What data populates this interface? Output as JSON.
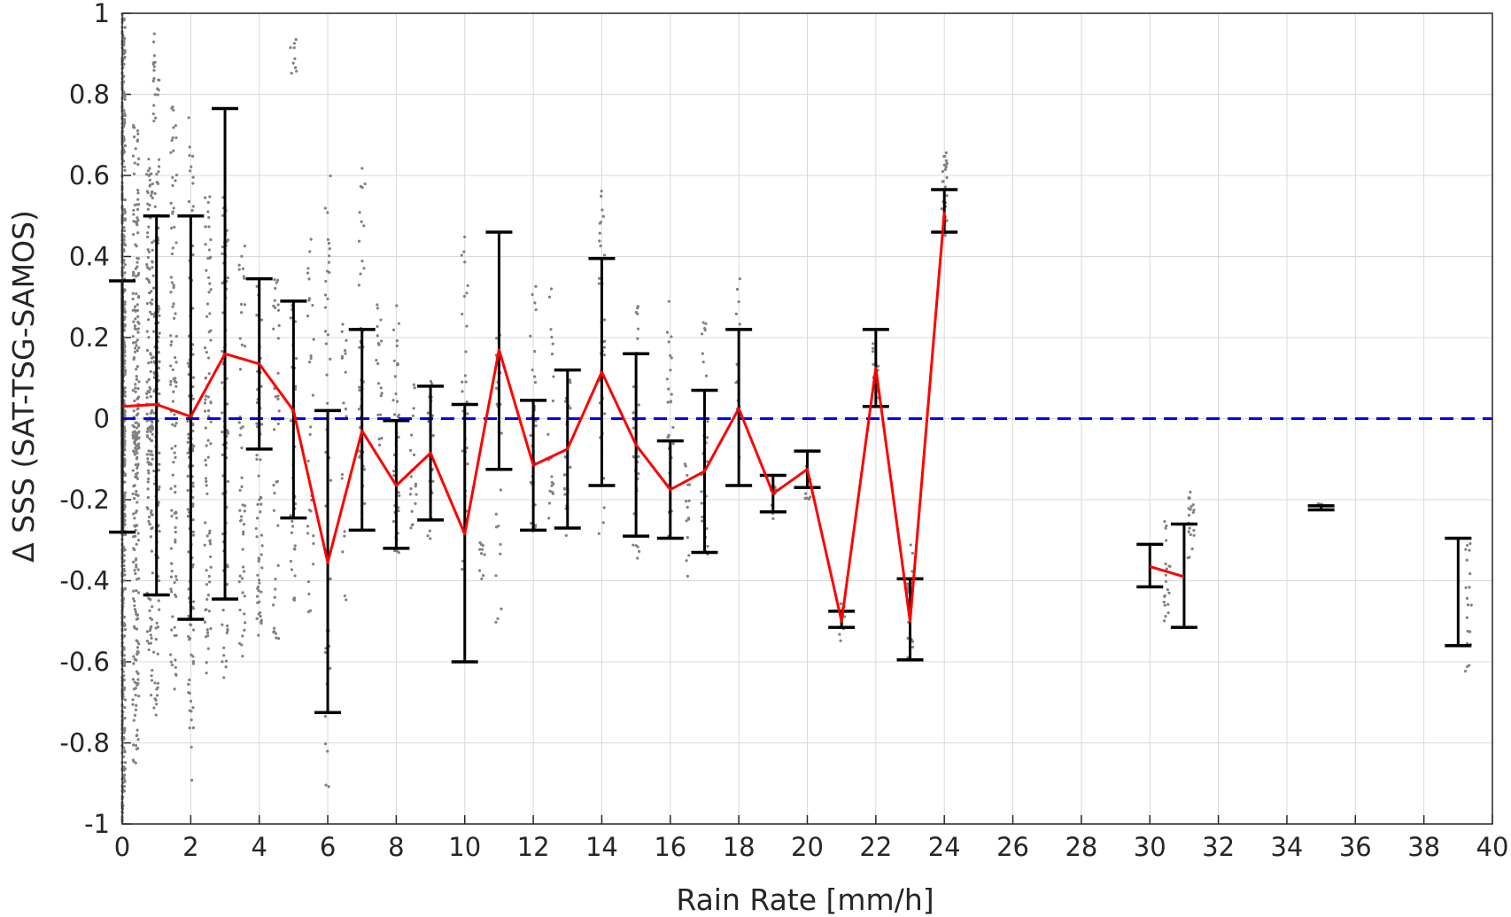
{
  "chart_data": {
    "type": "scatter",
    "xlabel": "Rain Rate [mm/h]",
    "ylabel": "Δ SSS (SAT-TSG-SAMOS)",
    "xlim": [
      0,
      40
    ],
    "ylim": [
      -1,
      1
    ],
    "grid": true,
    "x_ticks": [
      "0",
      "2",
      "4",
      "6",
      "8",
      "10",
      "12",
      "14",
      "16",
      "18",
      "20",
      "22",
      "24",
      "26",
      "28",
      "30",
      "32",
      "34",
      "36",
      "38",
      "40"
    ],
    "y_ticks": [
      "1",
      "0.8",
      "0.6",
      "0.4",
      "0.2",
      "0",
      "-0.2",
      "-0.4",
      "-0.6",
      "-0.8",
      "-1"
    ],
    "zero_line": {
      "y": 0,
      "color": "#0000ff",
      "style": "dashed"
    },
    "colors": {
      "scatter": "#808080",
      "mean_line": "#ff0000",
      "error_bars": "#000000",
      "grid": "#d9d9d9"
    },
    "series": [
      {
        "kind": "bin_mean",
        "x": [
          0,
          1,
          2,
          3,
          4,
          5,
          6,
          7,
          8,
          9,
          10,
          11,
          12,
          13,
          14,
          15,
          16,
          17,
          18,
          19,
          20,
          21,
          22,
          23,
          24
        ],
        "y": [
          0.03,
          0.035,
          0.005,
          0.16,
          0.135,
          0.02,
          -0.355,
          -0.03,
          -0.165,
          -0.085,
          -0.285,
          0.17,
          -0.115,
          -0.075,
          0.115,
          -0.065,
          -0.175,
          -0.13,
          0.025,
          -0.185,
          -0.125,
          -0.5,
          0.125,
          -0.5,
          0.51
        ]
      },
      {
        "kind": "bin_mean",
        "x": [
          30,
          31
        ],
        "y": [
          -0.365,
          -0.39
        ]
      }
    ],
    "error_bars": [
      {
        "x": 0,
        "low": -0.28,
        "high": 0.34
      },
      {
        "x": 1,
        "low": -0.435,
        "high": 0.5
      },
      {
        "x": 2,
        "low": -0.495,
        "high": 0.5
      },
      {
        "x": 3,
        "low": -0.445,
        "high": 0.765
      },
      {
        "x": 4,
        "low": -0.075,
        "high": 0.345
      },
      {
        "x": 5,
        "low": -0.245,
        "high": 0.29
      },
      {
        "x": 6,
        "low": -0.725,
        "high": 0.02
      },
      {
        "x": 7,
        "low": -0.275,
        "high": 0.22
      },
      {
        "x": 8,
        "low": -0.32,
        "high": -0.005
      },
      {
        "x": 9,
        "low": -0.25,
        "high": 0.08
      },
      {
        "x": 10,
        "low": -0.6,
        "high": 0.035
      },
      {
        "x": 11,
        "low": -0.125,
        "high": 0.46
      },
      {
        "x": 12,
        "low": -0.275,
        "high": 0.045
      },
      {
        "x": 13,
        "low": -0.27,
        "high": 0.12
      },
      {
        "x": 14,
        "low": -0.165,
        "high": 0.395
      },
      {
        "x": 15,
        "low": -0.29,
        "high": 0.16
      },
      {
        "x": 16,
        "low": -0.295,
        "high": -0.055
      },
      {
        "x": 17,
        "low": -0.33,
        "high": 0.07
      },
      {
        "x": 18,
        "low": -0.165,
        "high": 0.22
      },
      {
        "x": 19,
        "low": -0.23,
        "high": -0.14
      },
      {
        "x": 20,
        "low": -0.17,
        "high": -0.08
      },
      {
        "x": 21,
        "low": -0.515,
        "high": -0.475
      },
      {
        "x": 22,
        "low": 0.03,
        "high": 0.22
      },
      {
        "x": 23,
        "low": -0.595,
        "high": -0.395
      },
      {
        "x": 24,
        "low": 0.46,
        "high": 0.565
      },
      {
        "x": 30,
        "low": -0.415,
        "high": -0.31
      },
      {
        "x": 31,
        "low": -0.515,
        "high": -0.26
      },
      {
        "x": 35,
        "low": -0.225,
        "high": -0.215
      },
      {
        "x": 39,
        "low": -0.56,
        "high": -0.295
      }
    ],
    "scatter_clusters": [
      {
        "x": 0,
        "low": -1,
        "high": 1,
        "n": 900
      },
      {
        "x": 0.4,
        "low": -0.85,
        "high": 0.75,
        "n": 250
      },
      {
        "x": 0.8,
        "low": -0.7,
        "high": 0.65,
        "n": 160
      },
      {
        "x": 1,
        "low": -0.75,
        "high": 0.95,
        "n": 140
      },
      {
        "x": 1.5,
        "low": -0.67,
        "high": 0.8,
        "n": 100
      },
      {
        "x": 2,
        "low": -0.9,
        "high": 0.75,
        "n": 120
      },
      {
        "x": 2.5,
        "low": -0.63,
        "high": 0.55,
        "n": 80
      },
      {
        "x": 3,
        "low": -0.67,
        "high": 0.55,
        "n": 80
      },
      {
        "x": 3.5,
        "low": -0.6,
        "high": 0.45,
        "n": 50
      },
      {
        "x": 4,
        "low": -0.55,
        "high": 0.35,
        "n": 60
      },
      {
        "x": 4.5,
        "low": -0.55,
        "high": 0.35,
        "n": 40
      },
      {
        "x": 5,
        "low": -0.45,
        "high": 0.3,
        "n": 40
      },
      {
        "x": 5,
        "low": 0.85,
        "high": 0.95,
        "n": 10
      },
      {
        "x": 5.5,
        "low": -0.5,
        "high": 0.45,
        "n": 30
      },
      {
        "x": 6,
        "low": -0.92,
        "high": 0.6,
        "n": 40
      },
      {
        "x": 6.5,
        "low": -0.45,
        "high": 0.25,
        "n": 20
      },
      {
        "x": 7,
        "low": -0.25,
        "high": 0.62,
        "n": 40
      },
      {
        "x": 7.5,
        "low": -0.1,
        "high": 0.3,
        "n": 20
      },
      {
        "x": 8,
        "low": -0.35,
        "high": 0.3,
        "n": 40
      },
      {
        "x": 8.5,
        "low": -0.3,
        "high": 0.1,
        "n": 20
      },
      {
        "x": 9,
        "low": -0.3,
        "high": 0.1,
        "n": 25
      },
      {
        "x": 10,
        "low": -0.45,
        "high": 0.45,
        "n": 30
      },
      {
        "x": 10.5,
        "low": -0.4,
        "high": -0.3,
        "n": 10
      },
      {
        "x": 11,
        "low": -0.52,
        "high": 0.27,
        "n": 25
      },
      {
        "x": 12,
        "low": -0.3,
        "high": 0.35,
        "n": 30
      },
      {
        "x": 12.5,
        "low": -0.25,
        "high": 0.4,
        "n": 20
      },
      {
        "x": 13,
        "low": -0.3,
        "high": 0.1,
        "n": 25
      },
      {
        "x": 14,
        "low": -0.3,
        "high": 0.58,
        "n": 35
      },
      {
        "x": 15,
        "low": -0.35,
        "high": 0.3,
        "n": 30
      },
      {
        "x": 16,
        "low": -0.3,
        "high": 0.3,
        "n": 25
      },
      {
        "x": 16.5,
        "low": -0.4,
        "high": -0.1,
        "n": 15
      },
      {
        "x": 17,
        "low": -0.35,
        "high": 0.3,
        "n": 25
      },
      {
        "x": 18,
        "low": -0.1,
        "high": 0.35,
        "n": 15
      },
      {
        "x": 19,
        "low": -0.25,
        "high": -0.14,
        "n": 10
      },
      {
        "x": 20,
        "low": -0.2,
        "high": -0.1,
        "n": 10
      },
      {
        "x": 21,
        "low": -0.55,
        "high": -0.45,
        "n": 12
      },
      {
        "x": 22,
        "low": 0.05,
        "high": 0.2,
        "n": 12
      },
      {
        "x": 23,
        "low": -0.6,
        "high": -0.3,
        "n": 25
      },
      {
        "x": 24,
        "low": 0.45,
        "high": 0.66,
        "n": 25
      },
      {
        "x": 30.5,
        "low": -0.5,
        "high": -0.25,
        "n": 20
      },
      {
        "x": 31.2,
        "low": -0.35,
        "high": -0.17,
        "n": 20
      },
      {
        "x": 35,
        "low": -0.22,
        "high": -0.21,
        "n": 4
      },
      {
        "x": 39.3,
        "low": -0.65,
        "high": -0.3,
        "n": 20
      }
    ]
  }
}
